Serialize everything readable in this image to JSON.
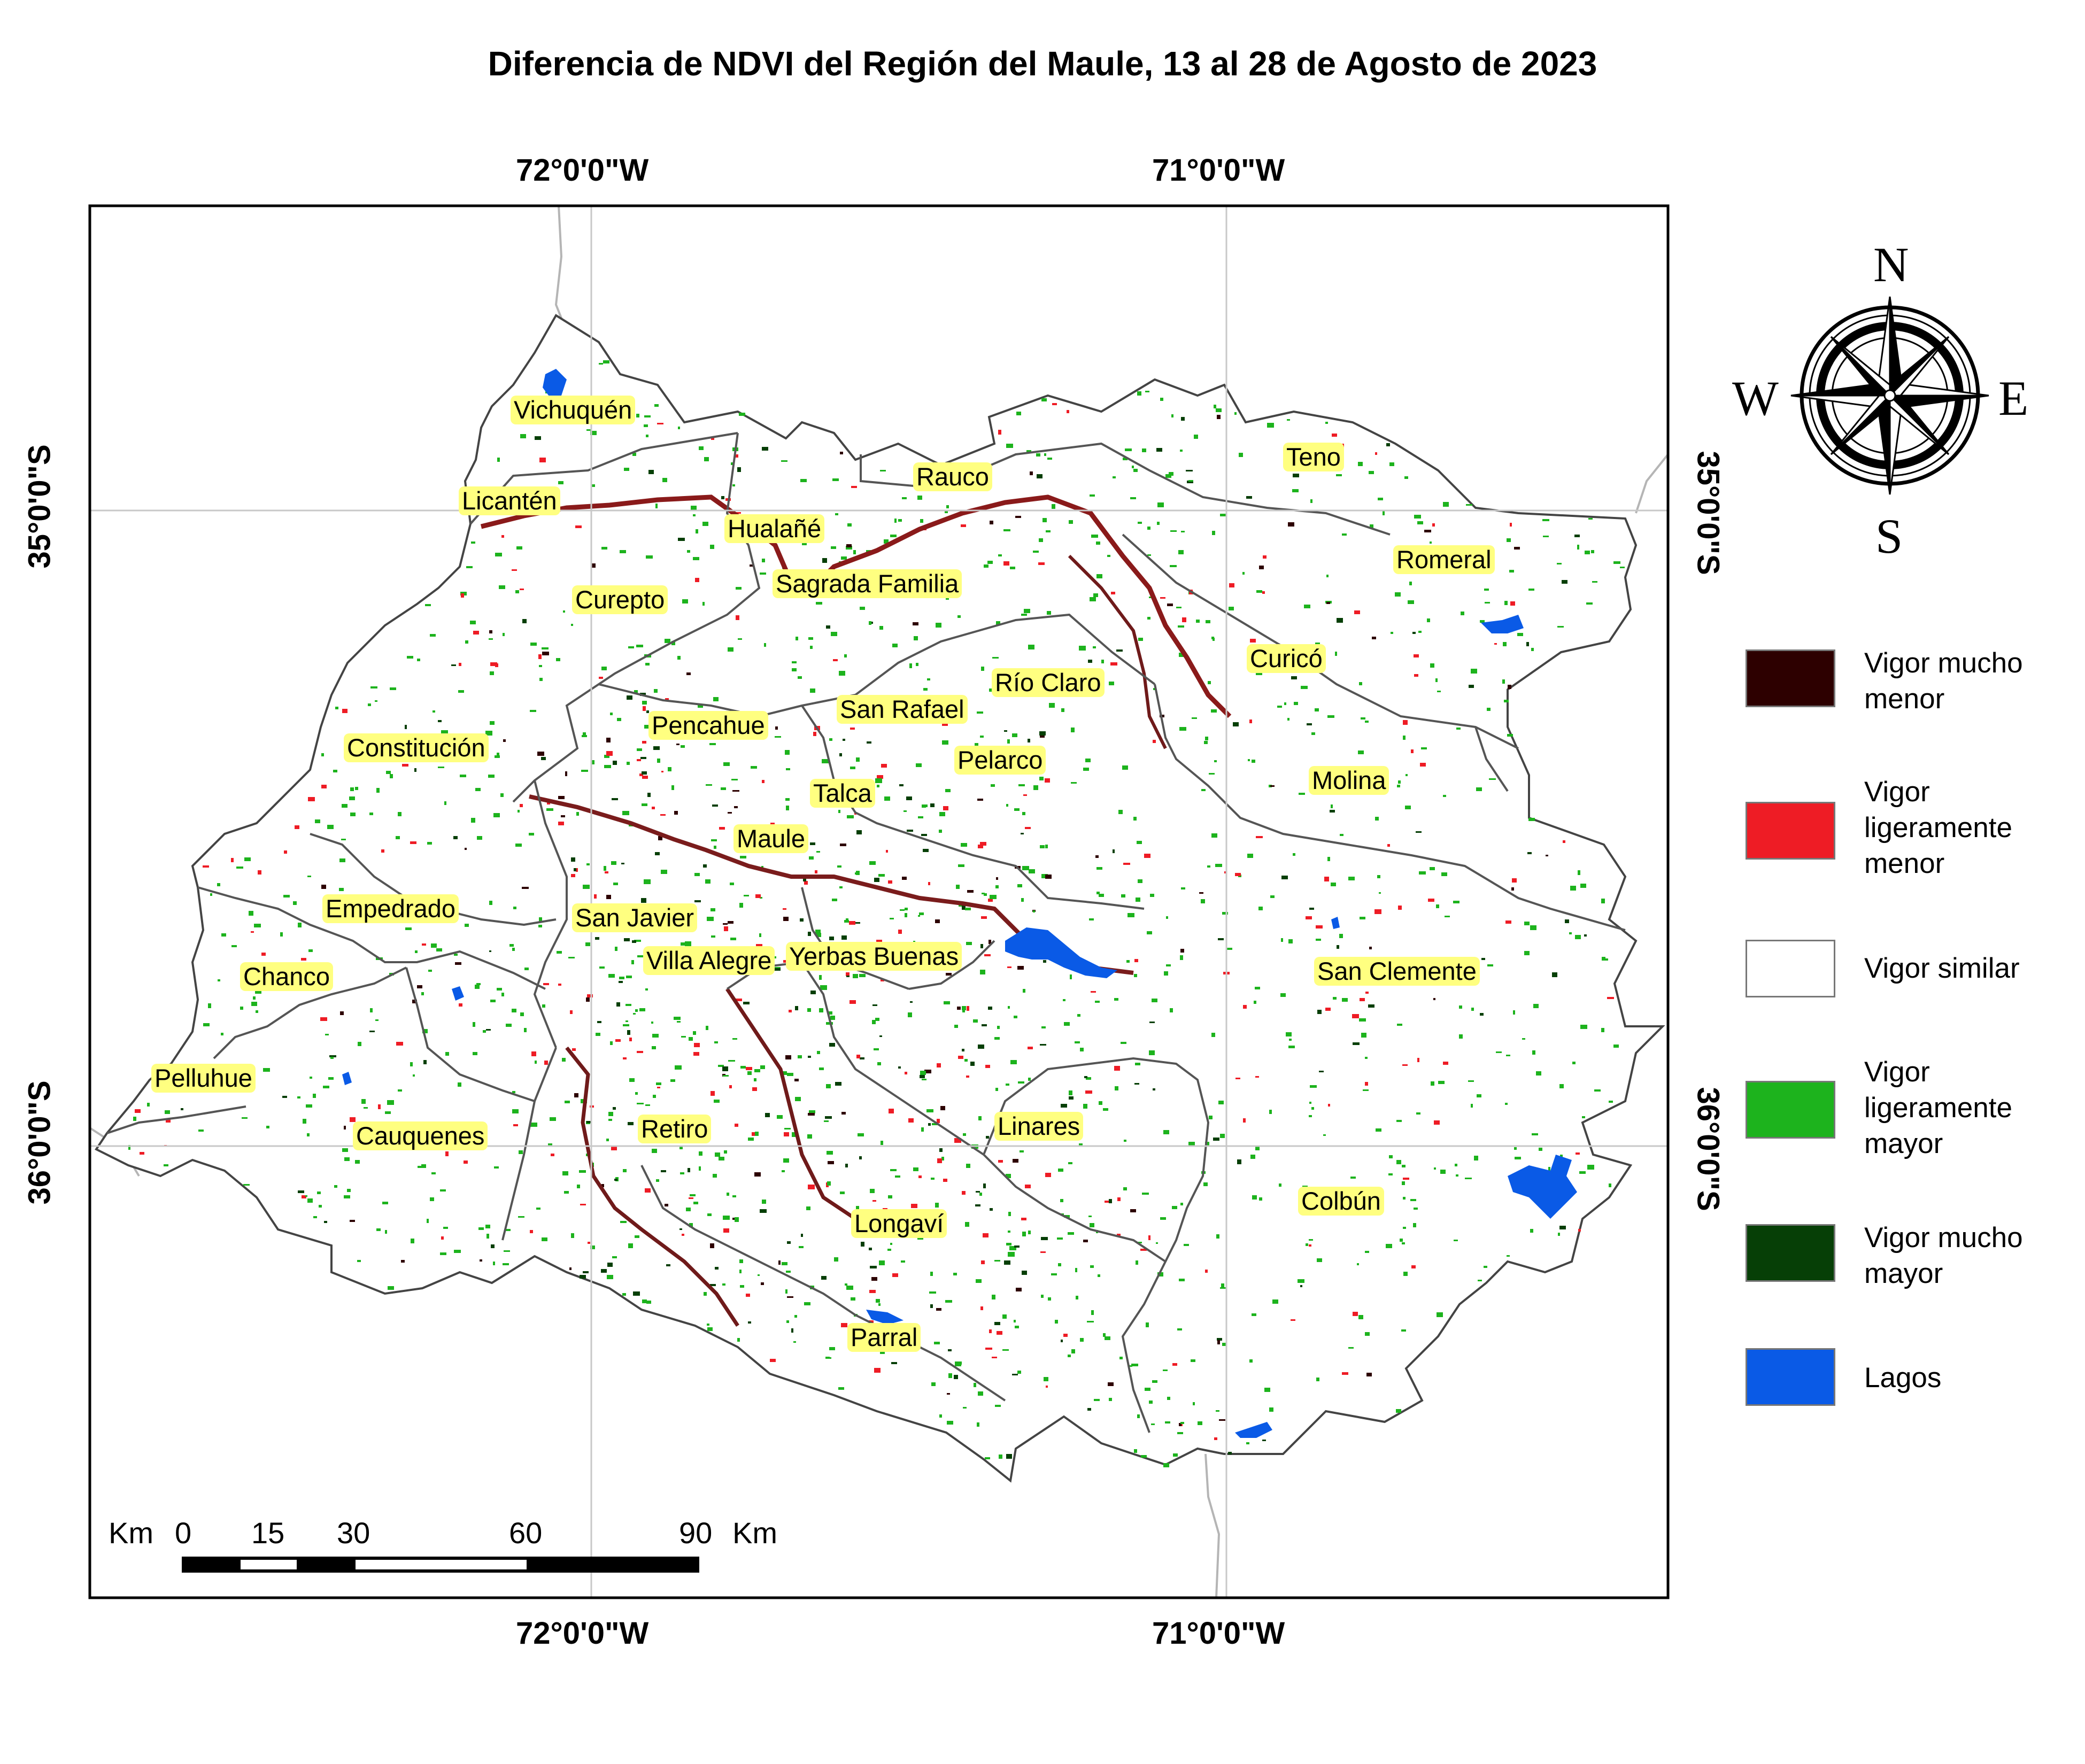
{
  "title": "Diferencia de NDVI del Región del Maule, 13 al 28 de Agosto de 2023",
  "graticule": {
    "lon_labels": [
      "72°0'0\"W",
      "71°0'0\"W"
    ],
    "lat_labels": [
      "35°0'0\"S",
      "36°0'0\"S"
    ]
  },
  "places": [
    {
      "name": "Vichuquén"
    },
    {
      "name": "Licantén"
    },
    {
      "name": "Rauco"
    },
    {
      "name": "Teno"
    },
    {
      "name": "Hualañé"
    },
    {
      "name": "Romeral"
    },
    {
      "name": "Sagrada Familia"
    },
    {
      "name": "Curepto"
    },
    {
      "name": "Curicó"
    },
    {
      "name": "Río Claro"
    },
    {
      "name": "San Rafael"
    },
    {
      "name": "Pencahue"
    },
    {
      "name": "Constitución"
    },
    {
      "name": "Pelarco"
    },
    {
      "name": "Molina"
    },
    {
      "name": "Talca"
    },
    {
      "name": "Maule"
    },
    {
      "name": "Empedrado"
    },
    {
      "name": "San Javier"
    },
    {
      "name": "Villa Alegre"
    },
    {
      "name": "Yerbas Buenas"
    },
    {
      "name": "San Clemente"
    },
    {
      "name": "Chanco"
    },
    {
      "name": "Pelluhue"
    },
    {
      "name": "Cauquenes"
    },
    {
      "name": "Retiro"
    },
    {
      "name": "Linares"
    },
    {
      "name": "Colbún"
    },
    {
      "name": "Longaví"
    },
    {
      "name": "Parral"
    }
  ],
  "legend": {
    "items": [
      {
        "label": "Vigor mucho menor",
        "color": "#2d0000"
      },
      {
        "label": "Vigor ligeramente menor",
        "color": "#ee1c25"
      },
      {
        "label": "Vigor similar",
        "color": "#ffffff"
      },
      {
        "label": "Vigor ligeramente mayor",
        "color": "#1db31d"
      },
      {
        "label": "Vigor mucho mayor",
        "color": "#063f06"
      },
      {
        "label": "Lagos",
        "color": "#0a5ae6"
      }
    ]
  },
  "compass": {
    "n": "N",
    "s": "S",
    "e": "E",
    "w": "W"
  },
  "scalebar": {
    "unit_left": "Km",
    "unit_right": "Km",
    "ticks": [
      "0",
      "15",
      "30",
      "60",
      "90"
    ]
  },
  "colors": {
    "label_highlight": "#ffff80",
    "boundary": "#555555",
    "river": "#7a1c1c"
  }
}
